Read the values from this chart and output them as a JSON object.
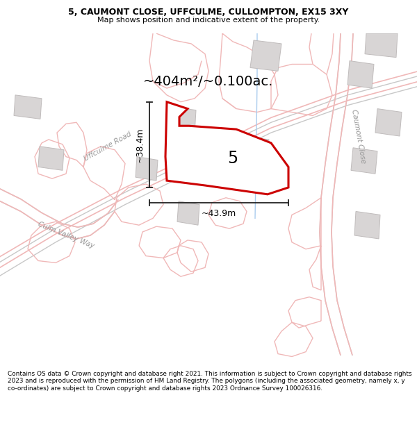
{
  "title_line1": "5, CAUMONT CLOSE, UFFCULME, CULLOMPTON, EX15 3XY",
  "title_line2": "Map shows position and indicative extent of the property.",
  "area_label": "~404m²/~0.100ac.",
  "plot_number": "5",
  "dimension_h": "~38.4m",
  "dimension_w": "~43.9m",
  "footer": "Contains OS data © Crown copyright and database right 2021. This information is subject to Crown copyright and database rights 2023 and is reproduced with the permission of HM Land Registry. The polygons (including the associated geometry, namely x, y co-ordinates) are subject to Crown copyright and database rights 2023 Ordnance Survey 100026316.",
  "map_bg": "#f7f4f4",
  "road_color": "#f0b8b8",
  "road_gray": "#c8c8c8",
  "building_color": "#d8d5d5",
  "building_edge": "#c0bcbc",
  "plot_border_color": "#cc0000",
  "blue_line_color": "#aaccee",
  "text_color": "#000000",
  "dim_color": "#222222",
  "road_label_color": "#999999"
}
